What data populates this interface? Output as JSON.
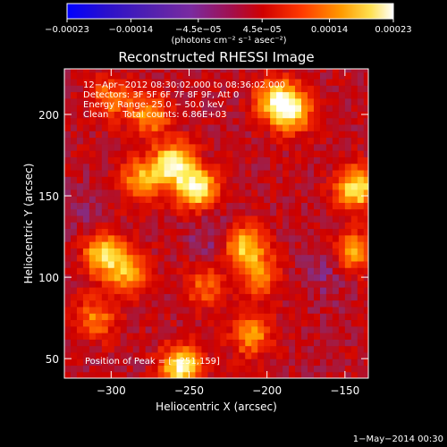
{
  "chart_data": {
    "type": "heatmap",
    "title": "Reconstructed RHESSI Image",
    "xlabel": "Heliocentric X (arcsec)",
    "ylabel": "Heliocentric Y (arcsec)",
    "x_ticks": [
      -300,
      -250,
      -200,
      -150
    ],
    "y_ticks": [
      50,
      100,
      150,
      200
    ],
    "x_tick_labels": [
      "−300",
      "−250",
      "−200",
      "−150"
    ],
    "y_tick_labels": [
      "50",
      "100",
      "150",
      "200"
    ],
    "xlim": [
      -330,
      -135
    ],
    "ylim": [
      38,
      228
    ],
    "colorbar": {
      "ticks": [
        -0.00023,
        -0.00014,
        -4.5e-05,
        4.5e-05,
        0.00014,
        0.00023
      ],
      "tick_labels": [
        "−0.00023",
        "−0.00014",
        "−4.5e−05",
        "4.5e−05",
        "0.00014",
        "0.00023"
      ],
      "units_label": "(photons cm⁻² s⁻¹ asec⁻²)",
      "range": [
        -0.00023,
        0.00023
      ]
    },
    "annotation_lines": [
      "12−Apr−2012 08:30:02.000 to 08:36:02.000",
      "Detectors: 3F 5F 6F 7F 8F 9F, Att 0",
      "Energy Range: 25.0 − 50.0 keV",
      "Clean     Total counts: 6.86E+03"
    ],
    "peak_label": "Position of Peak = [−251,159]",
    "peak_position": [
      -251,
      159
    ],
    "hot_regions": [
      {
        "x": -260,
        "y": 170,
        "value": 0.00022
      },
      {
        "x": -245,
        "y": 155,
        "value": 0.00023
      },
      {
        "x": -280,
        "y": 160,
        "value": 0.00016
      },
      {
        "x": -275,
        "y": 200,
        "value": 0.00014
      },
      {
        "x": -185,
        "y": 203,
        "value": 0.00021
      },
      {
        "x": -195,
        "y": 210,
        "value": 0.00016
      },
      {
        "x": -305,
        "y": 115,
        "value": 0.00019
      },
      {
        "x": -290,
        "y": 103,
        "value": 0.00015
      },
      {
        "x": -300,
        "y": 210,
        "value": 0.00012
      },
      {
        "x": -215,
        "y": 120,
        "value": 0.00018
      },
      {
        "x": -205,
        "y": 102,
        "value": 0.00013
      },
      {
        "x": -142,
        "y": 155,
        "value": 0.00022
      },
      {
        "x": -145,
        "y": 115,
        "value": 0.00016
      },
      {
        "x": -255,
        "y": 45,
        "value": 0.00023
      },
      {
        "x": -210,
        "y": 65,
        "value": 0.00014
      },
      {
        "x": -310,
        "y": 75,
        "value": 0.00012
      },
      {
        "x": -240,
        "y": 95,
        "value": 0.0001
      }
    ],
    "cold_regions": [
      {
        "x": -235,
        "y": 125,
        "value": -4.5e-05
      },
      {
        "x": -160,
        "y": 105,
        "value": -5e-05
      },
      {
        "x": -320,
        "y": 140,
        "value": -3e-05
      }
    ]
  },
  "footer": {
    "timestamp": "1−May−2014 00:30"
  },
  "colors": {
    "background": "#000000",
    "axes": "#ffffff",
    "colormap": [
      "#0000ff",
      "#3311bb",
      "#5522aa",
      "#7733aa",
      "#992255",
      "#cc0000",
      "#ee2200",
      "#ff6600",
      "#ffaa00",
      "#ffee55",
      "#ffffff"
    ]
  }
}
